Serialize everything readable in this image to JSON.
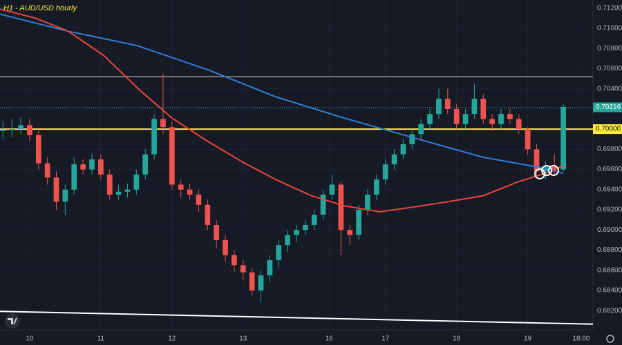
{
  "chart_data": {
    "type": "candlestick",
    "title": "H1 - AUD/USD hourly",
    "up_color": "#26a69a",
    "down_color": "#ef5350",
    "xlim": [
      0,
      200
    ],
    "xticks": [
      {
        "value": 10,
        "label": "10"
      },
      {
        "value": 34,
        "label": "11"
      },
      {
        "value": 58,
        "label": "12"
      },
      {
        "value": 82,
        "label": "13"
      },
      {
        "value": 111,
        "label": "16"
      },
      {
        "value": 130,
        "label": "17"
      },
      {
        "value": 154,
        "label": "18"
      },
      {
        "value": 178,
        "label": "19"
      },
      {
        "value": 196,
        "label": "18:00"
      }
    ],
    "ylim": [
      0.6801,
      0.7128
    ],
    "yticks": [
      {
        "value": 0.712,
        "label": "0.71200"
      },
      {
        "value": 0.71,
        "label": "0.71000"
      },
      {
        "value": 0.708,
        "label": "0.70800"
      },
      {
        "value": 0.706,
        "label": "0.70600"
      },
      {
        "value": 0.704,
        "label": "0.70400"
      },
      {
        "value": 0.702,
        "label": "0.70200"
      },
      {
        "value": 0.7,
        "label": "0.70000"
      },
      {
        "value": 0.698,
        "label": "0.69800"
      },
      {
        "value": 0.696,
        "label": "0.69600"
      },
      {
        "value": 0.694,
        "label": "0.69400"
      },
      {
        "value": 0.692,
        "label": "0.69200"
      },
      {
        "value": 0.69,
        "label": "0.69000"
      },
      {
        "value": 0.688,
        "label": "0.68800"
      },
      {
        "value": 0.686,
        "label": "0.68600"
      },
      {
        "value": 0.684,
        "label": "0.68400"
      },
      {
        "value": 0.682,
        "label": "0.68200"
      }
    ],
    "grid": true,
    "x": [
      1,
      4,
      7,
      10,
      13,
      16,
      19,
      22,
      25,
      28,
      31,
      34,
      37,
      40,
      43,
      46,
      49,
      52,
      55,
      58,
      61,
      64,
      67,
      70,
      73,
      76,
      79,
      82,
      85,
      88,
      91,
      94,
      97,
      100,
      103,
      106,
      109,
      112,
      115,
      118,
      121,
      124,
      127,
      130,
      133,
      136,
      139,
      142,
      145,
      148,
      151,
      154,
      157,
      160,
      163,
      166,
      169,
      172,
      175,
      178,
      181,
      184,
      187,
      190
    ],
    "open": [
      0.6998,
      0.6999,
      0.7,
      0.7004,
      0.6994,
      0.6966,
      0.6952,
      0.6928,
      0.694,
      0.6965,
      0.696,
      0.697,
      0.6955,
      0.6935,
      0.6938,
      0.694,
      0.6955,
      0.6975,
      0.701,
      0.7002,
      0.6945,
      0.694,
      0.6935,
      0.6925,
      0.6905,
      0.689,
      0.6875,
      0.6865,
      0.6858,
      0.684,
      0.6855,
      0.687,
      0.6885,
      0.6895,
      0.69,
      0.6905,
      0.6915,
      0.6935,
      0.6945,
      0.69,
      0.6895,
      0.692,
      0.6935,
      0.695,
      0.6965,
      0.6975,
      0.6985,
      0.6995,
      0.7005,
      0.7015,
      0.703,
      0.702,
      0.7005,
      0.7015,
      0.703,
      0.701,
      0.7005,
      0.7015,
      0.701,
      0.7,
      0.698,
      0.6958,
      0.6963,
      0.696
    ],
    "high": [
      0.7008,
      0.701,
      0.7012,
      0.701,
      0.6998,
      0.6972,
      0.6958,
      0.6945,
      0.6972,
      0.697,
      0.6976,
      0.6975,
      0.696,
      0.6945,
      0.6946,
      0.696,
      0.698,
      0.7015,
      0.7055,
      0.7008,
      0.695,
      0.6946,
      0.694,
      0.693,
      0.691,
      0.6895,
      0.688,
      0.687,
      0.6862,
      0.686,
      0.6875,
      0.689,
      0.69,
      0.6905,
      0.691,
      0.692,
      0.694,
      0.6955,
      0.6948,
      0.6905,
      0.6925,
      0.694,
      0.6955,
      0.697,
      0.698,
      0.699,
      0.7,
      0.701,
      0.702,
      0.704,
      0.704,
      0.7025,
      0.702,
      0.7045,
      0.7035,
      0.7015,
      0.702,
      0.702,
      0.7015,
      0.7002,
      0.6985,
      0.6968,
      0.6975,
      0.7025
    ],
    "low": [
      0.699,
      0.6992,
      0.6995,
      0.6988,
      0.696,
      0.6945,
      0.692,
      0.6915,
      0.6935,
      0.6955,
      0.6955,
      0.695,
      0.693,
      0.693,
      0.6932,
      0.6935,
      0.695,
      0.697,
      0.6995,
      0.694,
      0.6932,
      0.693,
      0.6918,
      0.69,
      0.6882,
      0.6868,
      0.6858,
      0.685,
      0.6835,
      0.6828,
      0.6848,
      0.6862,
      0.6878,
      0.6888,
      0.6895,
      0.69,
      0.691,
      0.693,
      0.6875,
      0.6885,
      0.689,
      0.6915,
      0.693,
      0.6945,
      0.696,
      0.697,
      0.698,
      0.699,
      0.7,
      0.701,
      0.7015,
      0.7,
      0.7,
      0.701,
      0.7005,
      0.6998,
      0.7,
      0.7005,
      0.6995,
      0.6975,
      0.6952,
      0.695,
      0.6955,
      0.6958
    ],
    "close": [
      0.6999,
      0.7,
      0.7004,
      0.6994,
      0.6966,
      0.6952,
      0.6928,
      0.694,
      0.6965,
      0.696,
      0.697,
      0.6955,
      0.6935,
      0.6938,
      0.694,
      0.6955,
      0.6975,
      0.701,
      0.7002,
      0.6945,
      0.694,
      0.6935,
      0.6925,
      0.6905,
      0.689,
      0.6875,
      0.6865,
      0.6858,
      0.684,
      0.6855,
      0.687,
      0.6885,
      0.6895,
      0.69,
      0.6905,
      0.6915,
      0.6935,
      0.6945,
      0.69,
      0.6895,
      0.692,
      0.6935,
      0.695,
      0.6965,
      0.6975,
      0.6985,
      0.6995,
      0.7005,
      0.7015,
      0.703,
      0.702,
      0.7005,
      0.7015,
      0.703,
      0.701,
      0.7005,
      0.7015,
      0.701,
      0.7,
      0.698,
      0.6958,
      0.6963,
      0.696,
      0.7022
    ],
    "overlays": [
      {
        "color": "#2f7fd8",
        "x": [
          0,
          23,
          46,
          70,
          93,
          116,
          140,
          163,
          186,
          190
        ],
        "values": [
          0.7114,
          0.7097,
          0.7083,
          0.7059,
          0.7032,
          0.7011,
          0.6991,
          0.6972,
          0.696,
          0.6956
        ]
      },
      {
        "color": "#e8473c",
        "x": [
          0,
          12,
          23,
          35,
          47,
          58,
          70,
          82,
          93,
          105,
          116,
          128,
          140,
          151,
          163,
          175,
          186,
          190
        ],
        "values": [
          0.7119,
          0.711,
          0.7097,
          0.7073,
          0.7039,
          0.7011,
          0.6988,
          0.6967,
          0.695,
          0.6934,
          0.6924,
          0.6918,
          0.6923,
          0.6928,
          0.6934,
          0.6948,
          0.6958,
          0.6964
        ]
      },
      {
        "color": "#ffffff",
        "x": [
          0,
          200
        ],
        "values": [
          0.68193,
          0.68066
        ]
      }
    ],
    "levels": [
      {
        "value": 0.7052,
        "color": "#f3d6e0"
      },
      {
        "value": 0.7,
        "label": "0.70000",
        "color": "#ffeb3b"
      },
      {
        "value": 0.70216,
        "label": "0.70216",
        "color": "#26a69a"
      }
    ]
  }
}
